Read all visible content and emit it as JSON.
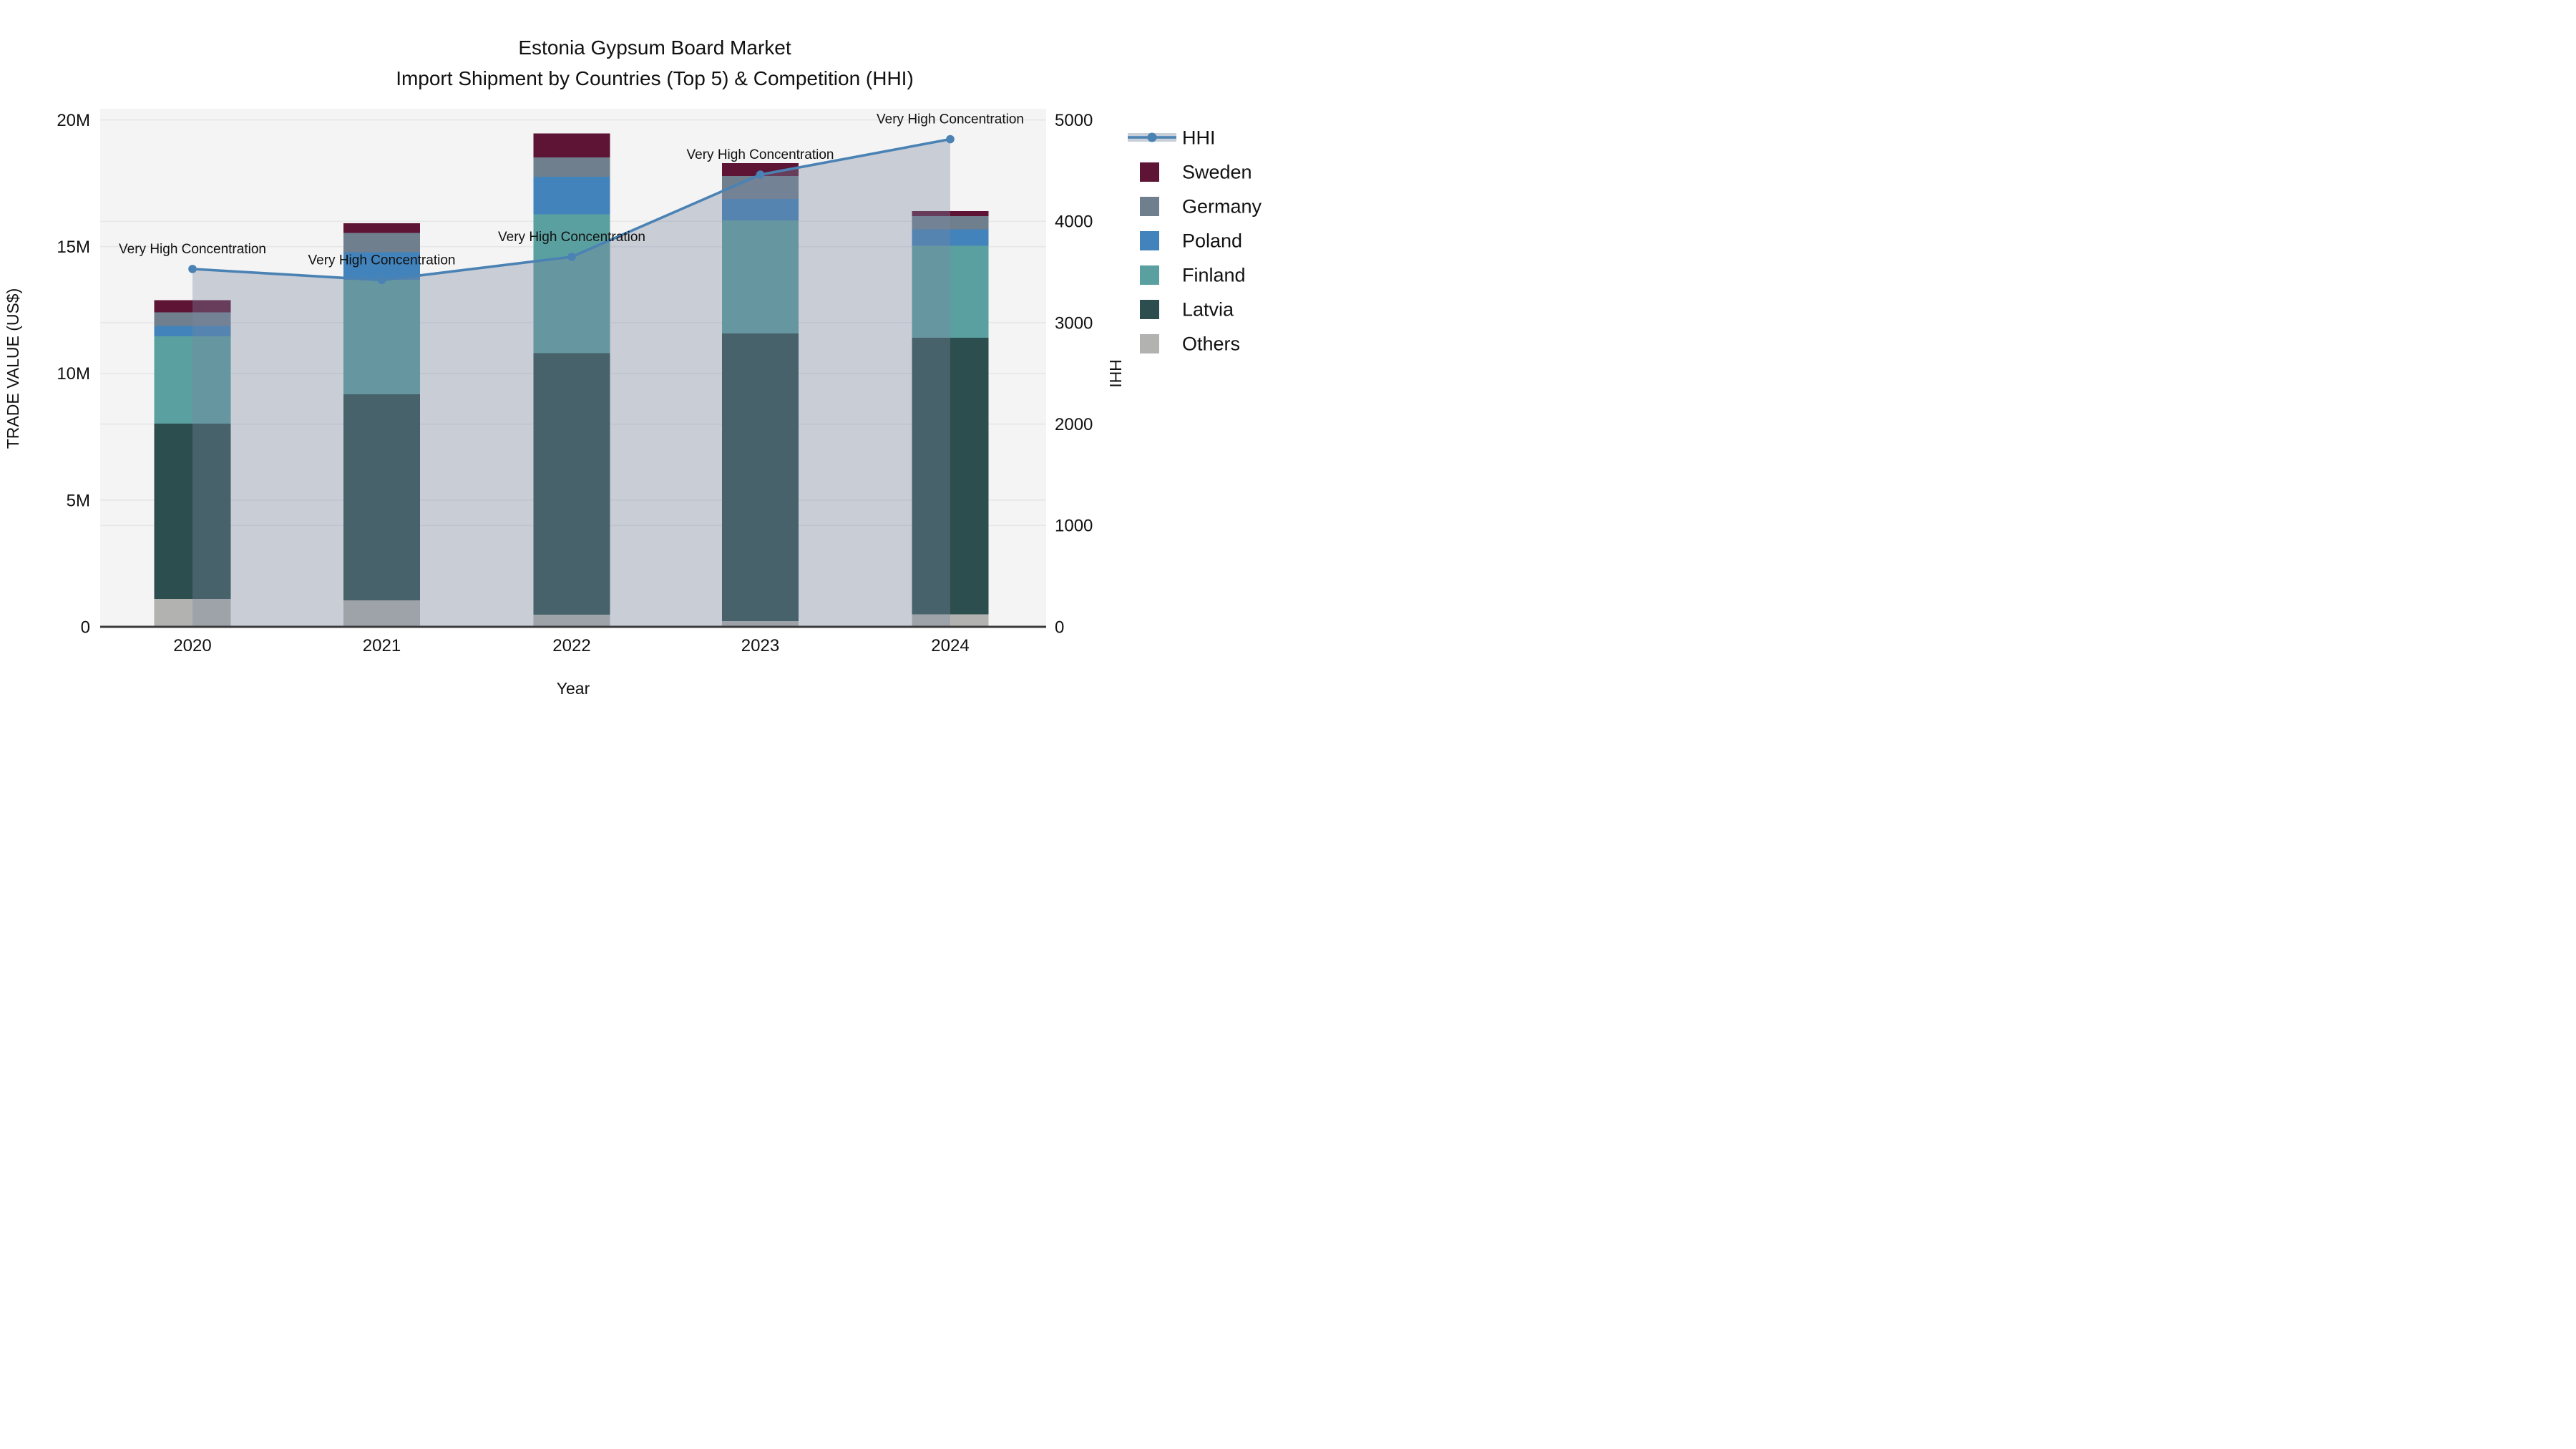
{
  "title": {
    "line1": "Estonia Gypsum Board Market",
    "line2": "Import Shipment by Countries (Top 5) & Competition (HHI)"
  },
  "axes": {
    "x_title": "Year",
    "y_left_title": "TRADE VALUE (US$)",
    "y_right_title": "HHI",
    "x_ticks": [
      "2020",
      "2021",
      "2022",
      "2023",
      "2024"
    ],
    "y_left_ticks": [
      {
        "value": 0,
        "label": "0"
      },
      {
        "value": 5,
        "label": "5M"
      },
      {
        "value": 10,
        "label": "10M"
      },
      {
        "value": 15,
        "label": "15M"
      },
      {
        "value": 20,
        "label": "20M"
      }
    ],
    "y_right_ticks": [
      {
        "value": 0,
        "label": "0"
      },
      {
        "value": 1000,
        "label": "1000"
      },
      {
        "value": 2000,
        "label": "2000"
      },
      {
        "value": 3000,
        "label": "3000"
      },
      {
        "value": 4000,
        "label": "4000"
      },
      {
        "value": 5000,
        "label": "5000"
      }
    ]
  },
  "legend": {
    "position": "right",
    "items": [
      {
        "label": "HHI",
        "type": "line",
        "color": "#4a82b4",
        "band_color": "#c9cfd9"
      },
      {
        "label": "Sweden",
        "type": "swatch",
        "color": "#5e1434"
      },
      {
        "label": "Germany",
        "type": "swatch",
        "color": "#6f7f8e"
      },
      {
        "label": "Poland",
        "type": "swatch",
        "color": "#4383bb"
      },
      {
        "label": "Finland",
        "type": "swatch",
        "color": "#5ba0a0"
      },
      {
        "label": "Latvia",
        "type": "swatch",
        "color": "#2d4e4e"
      },
      {
        "label": "Others",
        "type": "swatch",
        "color": "#b2b2b0"
      }
    ]
  },
  "chart_data": {
    "type": "combo: stacked-bar (left axis) + line with area fill (right axis)",
    "title": "Estonia Gypsum Board Market — Import Shipment by Countries (Top 5) & Competition (HHI)",
    "xlabel": "Year",
    "ylabel_left": "TRADE VALUE (US$)",
    "ylabel_right": "HHI",
    "categories": [
      "2020",
      "2021",
      "2022",
      "2023",
      "2024"
    ],
    "unit_left": "US$ millions (values estimated from axis gridlines)",
    "stack_order_bottom_to_top": [
      "Others",
      "Latvia",
      "Finland",
      "Poland",
      "Germany",
      "Sweden"
    ],
    "series": [
      {
        "name": "Others",
        "color": "#b2b2b0",
        "values": [
          1.1,
          1.04,
          0.48,
          0.22,
          0.5
        ]
      },
      {
        "name": "Latvia",
        "color": "#2d4e4e",
        "values": [
          6.92,
          8.13,
          10.32,
          11.35,
          10.91
        ]
      },
      {
        "name": "Finland",
        "color": "#5ba0a0",
        "values": [
          3.44,
          4.52,
          5.48,
          4.47,
          3.63
        ]
      },
      {
        "name": "Poland",
        "color": "#4383bb",
        "values": [
          0.41,
          1.09,
          1.48,
          0.85,
          0.64
        ]
      },
      {
        "name": "Germany",
        "color": "#6f7f8e",
        "values": [
          0.54,
          0.76,
          0.76,
          0.9,
          0.52
        ]
      },
      {
        "name": "Sweden",
        "color": "#5e1434",
        "values": [
          0.48,
          0.39,
          0.95,
          0.51,
          0.21
        ]
      }
    ],
    "bar_totals_musd": [
      12.89,
      15.93,
      19.47,
      18.3,
      16.41
    ],
    "line_series": {
      "name": "HHI",
      "axis": "right",
      "color": "#4a82b4",
      "area_fill": "rgba(122,137,162,0.36)",
      "values": [
        3530,
        3420,
        3650,
        4460,
        4810
      ]
    },
    "annotations": [
      {
        "x": "2020",
        "text": "Very High Concentration"
      },
      {
        "x": "2021",
        "text": "Very High Concentration"
      },
      {
        "x": "2022",
        "text": "Very High Concentration"
      },
      {
        "x": "2023",
        "text": "Very High Concentration"
      },
      {
        "x": "2024",
        "text": "Very High Concentration"
      }
    ],
    "ylim_left_musd": [
      0,
      20.5
    ],
    "ylim_right": [
      0,
      5000
    ],
    "grid": true,
    "legend_position": "right",
    "style": {
      "plot_background": "#f4f4f4",
      "page_background": "#ffffff",
      "gridline_color": "#e7e7e8",
      "axis_line_color": "#3a3a3a",
      "text_color": "#111111"
    }
  }
}
